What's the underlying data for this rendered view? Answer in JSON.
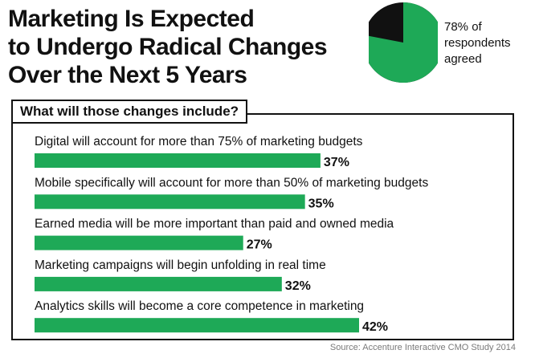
{
  "title_lines": [
    "Marketing Is Expected",
    "to Undergo Radical Changes",
    "Over the Next 5 Years"
  ],
  "pie": {
    "percent": 78,
    "note_lines": [
      "78% of",
      "respondents",
      "agreed"
    ]
  },
  "colors": {
    "bar": "#1ea957",
    "pie_agree": "#1ea957",
    "pie_rest": "#111111",
    "text": "#111111",
    "source": "#7a7a7a"
  },
  "panel": {
    "question": "What will those changes include?"
  },
  "chart_data": {
    "type": "bar",
    "orientation": "horizontal",
    "categories": [
      "Digital will account for more than 75% of marketing budgets",
      "Mobile specifically will account for more than 50% of marketing budgets",
      "Earned media will be more important than paid and owned media",
      "Marketing campaigns will begin unfolding in real time",
      "Analytics skills will become a core competence in marketing"
    ],
    "values": [
      37,
      35,
      27,
      32,
      42
    ],
    "value_labels": [
      "37%",
      "35%",
      "27%",
      "32%",
      "42%"
    ],
    "unit": "%",
    "grid": false,
    "legend": "none"
  },
  "source": "Source: Accenture Interactive CMO Study 2014"
}
